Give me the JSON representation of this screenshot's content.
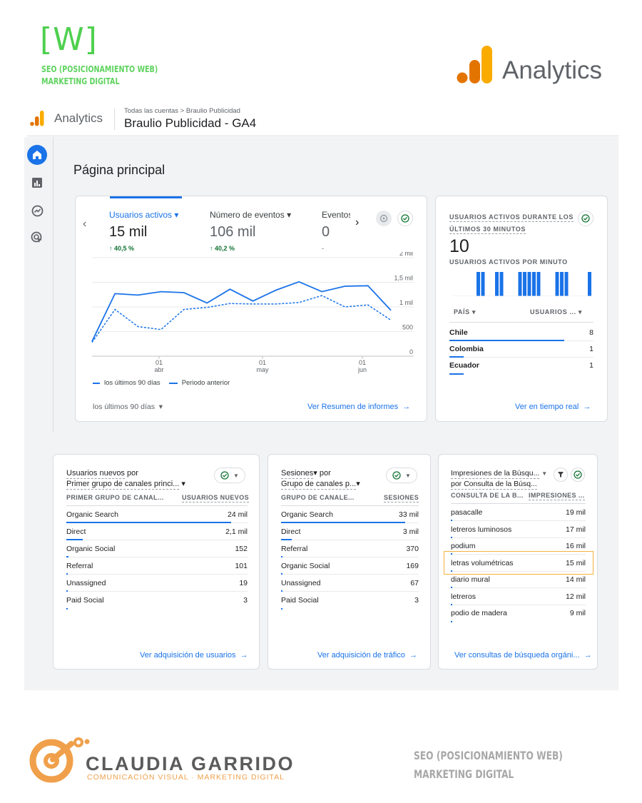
{
  "brand": {
    "w_logo": "[W]",
    "line1": "SEO (POSICIONAMIENTO WEB)",
    "line2": "MARKETING DIGITAL",
    "analytics_big": "Analytics"
  },
  "header": {
    "app_name": "Analytics",
    "breadcrumb": "Todas las cuentas > Braulio Publicidad",
    "property": "Braulio Publicidad - GA4"
  },
  "page": {
    "title": "Página principal"
  },
  "main_card": {
    "metrics": [
      {
        "label": "Usuarios activos",
        "value": "15 mil",
        "change": "↑ 40,5 %"
      },
      {
        "label": "Número de eventos",
        "value": "106 mil",
        "change": "↑ 40,2 %"
      },
      {
        "label": "Eventos",
        "value": "0",
        "change": "-"
      }
    ],
    "legend_current": "los últimos 90 días",
    "legend_previous": "Periodo anterior",
    "range_selector": "los últimos 90 días",
    "link": "Ver Resumen de informes"
  },
  "chart_data": {
    "type": "line",
    "y_ticks": [
      "2 mil",
      "1,5 mil",
      "1 mil",
      "500",
      "0"
    ],
    "ylim": [
      0,
      2000
    ],
    "x_ticks": [
      {
        "day": "01",
        "month": "abr"
      },
      {
        "day": "01",
        "month": "may"
      },
      {
        "day": "01",
        "month": "jun"
      }
    ],
    "series": [
      {
        "name": "los últimos 90 días",
        "values": [
          300,
          1270,
          1240,
          1310,
          1290,
          1080,
          1360,
          1120,
          1340,
          1510,
          1310,
          1420,
          1430,
          930
        ]
      },
      {
        "name": "Periodo anterior",
        "values": [
          280,
          950,
          600,
          540,
          950,
          990,
          1070,
          1060,
          1060,
          1090,
          1230,
          1000,
          1040,
          730
        ]
      }
    ]
  },
  "realtime": {
    "title_line1": "USUARIOS ACTIVOS DURANTE LOS",
    "title_line2": "ÚLTIMOS 30 MINUTOS",
    "value": "10",
    "per_minute": "USUARIOS ACTIVOS POR MINUTO",
    "minute_bars": [
      0,
      0,
      0,
      0,
      0,
      1,
      1,
      0,
      0,
      1,
      1,
      0,
      0,
      0,
      1,
      1,
      1,
      1,
      1,
      0,
      0,
      0,
      1,
      1,
      1,
      0,
      0,
      0,
      0,
      1
    ],
    "col_country": "PAÍS",
    "col_users": "USUARIOS ...",
    "rows": [
      {
        "name": "Chile",
        "value": "8",
        "share": 0.8
      },
      {
        "name": "Colombia",
        "value": "1",
        "share": 0.1
      },
      {
        "name": "Ecuador",
        "value": "1",
        "share": 0.1
      }
    ],
    "link": "Ver en tiempo real"
  },
  "card_new_users": {
    "title1": "Usuarios nuevos",
    "title1_suffix": " por",
    "title2": "Primer grupo de canales princi...",
    "col1": "PRIMER GRUPO DE CANAL...",
    "col2": "USUARIOS NUEVOS",
    "rows": [
      {
        "name": "Organic Search",
        "value": "24 mil",
        "share": 0.91
      },
      {
        "name": "Direct",
        "value": "2,1 mil",
        "share": 0.09
      },
      {
        "name": "Organic Social",
        "value": "152",
        "share": 0.01
      },
      {
        "name": "Referral",
        "value": "101",
        "share": 0.005
      },
      {
        "name": "Unassigned",
        "value": "19",
        "share": 0.001
      },
      {
        "name": "Paid Social",
        "value": "3",
        "share": 0
      }
    ],
    "link": "Ver adquisición de usuarios"
  },
  "card_sessions": {
    "title1": "Sesiones",
    "title1_suffix": " por",
    "title2": "Grupo de canales p...",
    "col1": "GRUPO DE CANALE...",
    "col2": "SESIONES",
    "rows": [
      {
        "name": "Organic Search",
        "value": "33 mil",
        "share": 0.9
      },
      {
        "name": "Direct",
        "value": "3 mil",
        "share": 0.08
      },
      {
        "name": "Referral",
        "value": "370",
        "share": 0.01
      },
      {
        "name": "Organic Social",
        "value": "169",
        "share": 0.005
      },
      {
        "name": "Unassigned",
        "value": "67",
        "share": 0.002
      },
      {
        "name": "Paid Social",
        "value": "3",
        "share": 0
      }
    ],
    "link": "Ver adquisición de tráfico"
  },
  "card_search": {
    "title1": "Impresiones de la Búsqu...",
    "title2": "por Consulta de la Búsq...",
    "col1": "CONSULTA DE LA B...",
    "col2": "IMPRESIONES ...",
    "rows": [
      {
        "name": "pasacalle",
        "value": "19 mil",
        "share": 0.012
      },
      {
        "name": "letreros luminosos",
        "value": "17 mil",
        "share": 0.011
      },
      {
        "name": "podium",
        "value": "16 mil",
        "share": 0.01
      },
      {
        "name": "letras volumétricas",
        "value": "15 mil",
        "share": 0.01
      },
      {
        "name": "diario mural",
        "value": "14 mil",
        "share": 0.009
      },
      {
        "name": "letreros",
        "value": "12 mil",
        "share": 0.008
      },
      {
        "name": "podio de madera",
        "value": "9 mil",
        "share": 0.006
      }
    ],
    "link": "Ver consultas de búsqueda orgáni..."
  },
  "footer": {
    "name": "CLAUDIA GARRIDO",
    "tagline": "COMUNICACIÓN VISUAL · MARKETING DIGITAL",
    "seo1": "SEO (POSICIONAMIENTO WEB)",
    "seo2": "MARKETING DIGITAL"
  },
  "colors": {
    "accent": "#1a73e8",
    "ga_orange": "#f9ab00",
    "ga_dark_orange": "#e37400",
    "brand_green": "#4fd04f",
    "highlight": "#f5b041"
  }
}
